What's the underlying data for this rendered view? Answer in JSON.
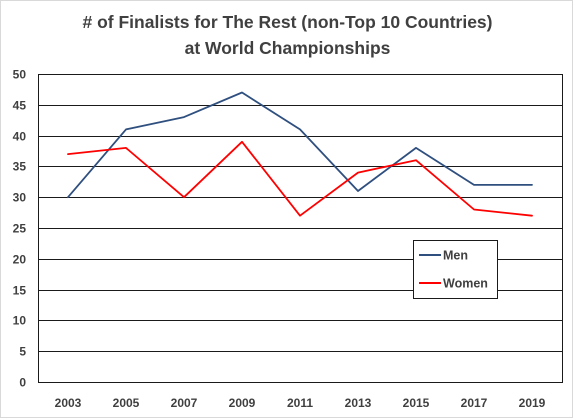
{
  "chart_data": {
    "type": "line",
    "title_lines": [
      "# of Finalists for The Rest (non-Top 10 Countries)",
      "at World Championships"
    ],
    "xlabel": "",
    "ylabel": "",
    "categories": [
      "2003",
      "2005",
      "2007",
      "2009",
      "2011",
      "2013",
      "2015",
      "2017",
      "2019"
    ],
    "ylim": [
      0,
      50
    ],
    "yticks": [
      0,
      5,
      10,
      15,
      20,
      25,
      30,
      35,
      40,
      45,
      50
    ],
    "grid": true,
    "legend_position": "center-right",
    "series": [
      {
        "name": "Men",
        "color": "#2f4f7f",
        "values": [
          30,
          41,
          43,
          47,
          41,
          31,
          38,
          32,
          32
        ]
      },
      {
        "name": "Women",
        "color": "#ff0000",
        "values": [
          37,
          38,
          30,
          39,
          27,
          34,
          36,
          28,
          27
        ]
      }
    ]
  }
}
